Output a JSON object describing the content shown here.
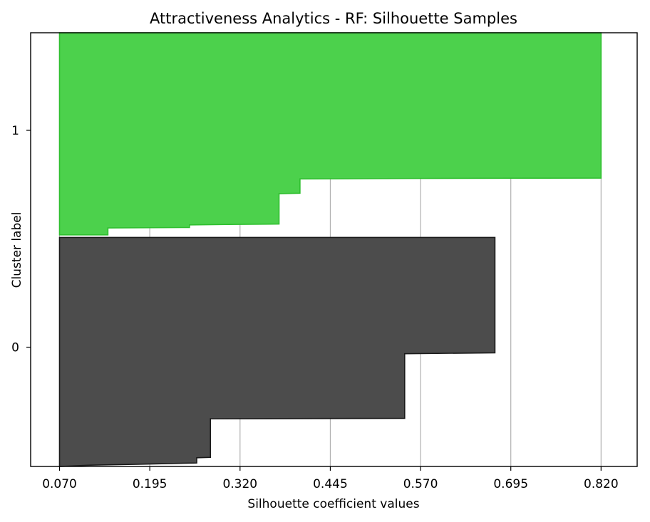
{
  "chart_data": {
    "type": "area",
    "title": "Attractiveness Analytics - RF: Silhouette Samples",
    "xlabel": "Silhouette coefficient values",
    "ylabel": "Cluster label",
    "xlim": [
      0.03,
      0.87
    ],
    "ylim": [
      0,
      100
    ],
    "xticks": [
      "0.070",
      "0.195",
      "0.320",
      "0.445",
      "0.570",
      "0.695",
      "0.820"
    ],
    "grid": "vertical",
    "legend": "none",
    "clusters": [
      {
        "label": "0",
        "color": "#4c4c4c",
        "edge_color": "#1a1a1a",
        "y_center": 27.5,
        "profile": [
          {
            "y": 0.0,
            "x": 0.072
          },
          {
            "y": 0.3,
            "x": 0.112
          },
          {
            "y": 0.5,
            "x": 0.178
          },
          {
            "y": 0.8,
            "x": 0.26
          },
          {
            "y": 2.0,
            "x": 0.26
          },
          {
            "y": 2.1,
            "x": 0.279
          },
          {
            "y": 11.0,
            "x": 0.279
          },
          {
            "y": 11.1,
            "x": 0.548
          },
          {
            "y": 26.0,
            "x": 0.548
          },
          {
            "y": 26.2,
            "x": 0.673
          },
          {
            "y": 52.8,
            "x": 0.673
          }
        ]
      },
      {
        "label": "1",
        "color": "#4cd14c",
        "edge_color": "#2fbf2f",
        "y_center": 77.5,
        "profile": [
          {
            "y": 53.4,
            "x": 0.137
          },
          {
            "y": 55.0,
            "x": 0.137
          },
          {
            "y": 55.1,
            "x": 0.25
          },
          {
            "y": 55.7,
            "x": 0.25
          },
          {
            "y": 55.8,
            "x": 0.303
          },
          {
            "y": 55.9,
            "x": 0.374
          },
          {
            "y": 62.9,
            "x": 0.374
          },
          {
            "y": 63.0,
            "x": 0.403
          },
          {
            "y": 66.3,
            "x": 0.403
          },
          {
            "y": 66.4,
            "x": 0.55
          },
          {
            "y": 66.5,
            "x": 0.82
          },
          {
            "y": 100.0,
            "x": 0.82
          }
        ]
      }
    ]
  }
}
